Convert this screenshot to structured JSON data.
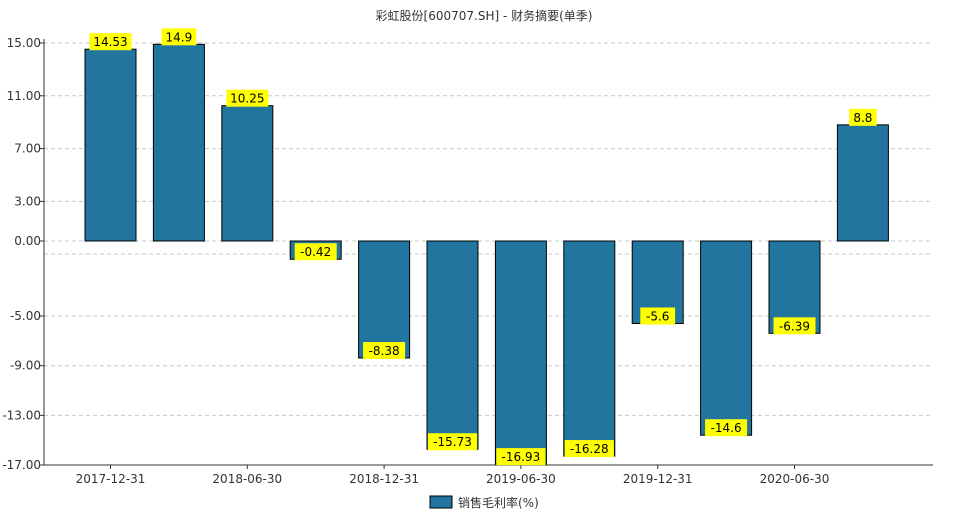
{
  "chart_data": {
    "type": "bar",
    "title": "彩虹股份[600707.SH] - 财务摘要(单季)",
    "xlabel": "",
    "ylabel": "",
    "ylim": [
      -17,
      15
    ],
    "y_ticks": [
      "15.00",
      "11.00",
      "7.00",
      "3.00",
      "0.00",
      "-5.00",
      "-9.00",
      "-13.00",
      "-17.00"
    ],
    "x_tick_labels": [
      "2017-12-31",
      "2018-06-30",
      "2018-12-31",
      "2019-06-30",
      "2019-12-31",
      "2020-06-30"
    ],
    "grid": true,
    "legend_position": "bottom",
    "series": [
      {
        "name": "销售毛利率(%)",
        "color": "#21759f",
        "values": [
          14.53,
          14.9,
          10.25,
          -0.42,
          -8.38,
          -15.73,
          -16.93,
          -16.28,
          -5.6,
          -14.6,
          -6.39,
          8.8
        ],
        "labels": [
          "14.53",
          "14.9",
          "10.25",
          "-0.42",
          "-8.38",
          "-15.73",
          "-16.93",
          "-16.28",
          "-5.6",
          "-14.6",
          "-6.39",
          "8.8"
        ]
      }
    ],
    "label_bg_color": "#ffff00"
  }
}
